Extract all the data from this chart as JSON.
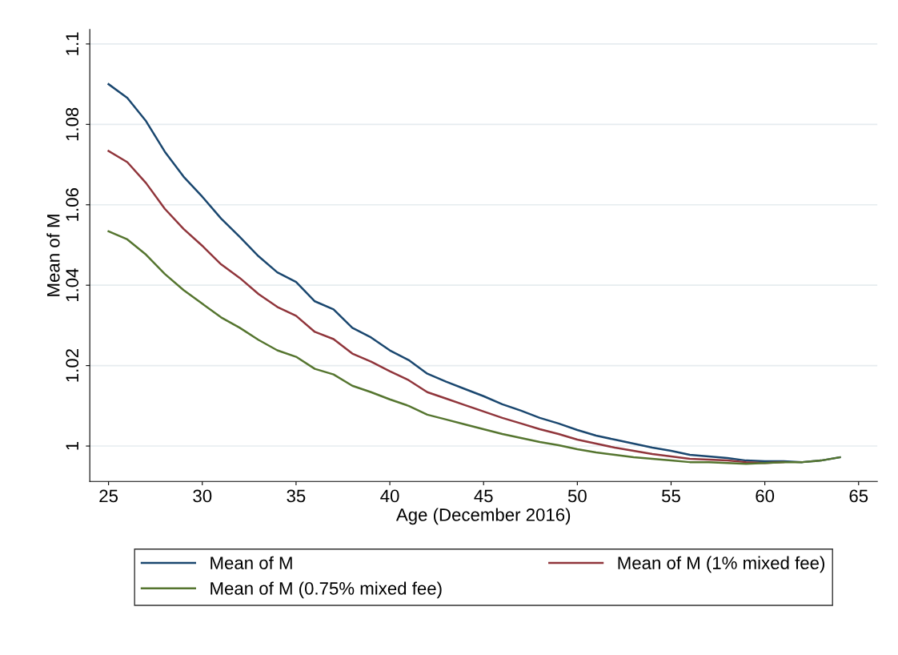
{
  "chart_data": {
    "type": "line",
    "xlabel": "Age (December 2016)",
    "ylabel": "Mean of M",
    "x": [
      25,
      26,
      27,
      28,
      29,
      30,
      31,
      32,
      33,
      34,
      35,
      36,
      37,
      38,
      39,
      40,
      41,
      42,
      43,
      44,
      45,
      46,
      47,
      48,
      49,
      50,
      51,
      52,
      53,
      54,
      55,
      56,
      57,
      58,
      59,
      60,
      61,
      62,
      63,
      64
    ],
    "series": [
      {
        "name": "Mean of M",
        "color": "#1a476f",
        "values": [
          1.09,
          1.0866,
          1.0808,
          1.0732,
          1.067,
          1.062,
          1.0566,
          1.052,
          1.0472,
          1.0432,
          1.0408,
          1.036,
          1.034,
          1.0294,
          1.027,
          1.0238,
          1.0214,
          1.018,
          1.016,
          1.0142,
          1.0124,
          1.0104,
          1.0088,
          1.007,
          1.0056,
          1.004,
          1.0026,
          1.0016,
          1.0006,
          0.9996,
          0.9988,
          0.9978,
          0.9974,
          0.997,
          0.9964,
          0.9962,
          0.9962,
          0.996,
          0.9964,
          0.9972
        ]
      },
      {
        "name": "Mean of M (1% mixed fee)",
        "color": "#90353b",
        "values": [
          1.0734,
          1.0706,
          1.0654,
          1.059,
          1.054,
          1.0498,
          1.0452,
          1.0418,
          1.0378,
          1.0346,
          1.0324,
          1.0284,
          1.0266,
          1.023,
          1.021,
          1.0186,
          1.0164,
          1.0134,
          1.0118,
          1.0102,
          1.0086,
          1.007,
          1.0056,
          1.0042,
          1.003,
          1.0016,
          1.0006,
          0.9996,
          0.9988,
          0.998,
          0.9974,
          0.9968,
          0.9966,
          0.9964,
          0.996,
          0.9958,
          0.996,
          null,
          null,
          null
        ]
      },
      {
        "name": "Mean of M (0.75% mixed fee)",
        "color": "#55752f",
        "values": [
          1.0534,
          1.0514,
          1.0476,
          1.0428,
          1.0388,
          1.0354,
          1.032,
          1.0294,
          1.0264,
          1.0238,
          1.0222,
          1.0192,
          1.0178,
          1.015,
          1.0134,
          1.0116,
          1.01,
          1.0078,
          1.0066,
          1.0054,
          1.0042,
          1.003,
          1.002,
          1.001,
          1.0002,
          0.9992,
          0.9984,
          0.9978,
          0.9972,
          0.9968,
          0.9964,
          0.996,
          0.996,
          0.9958,
          0.9956,
          0.9958,
          0.996,
          0.996,
          0.9964,
          0.9972
        ]
      }
    ],
    "xlim": [
      24,
      66
    ],
    "xticks": [
      25,
      30,
      35,
      40,
      45,
      50,
      55,
      60,
      65
    ],
    "ylim": [
      0.9912,
      1.1036
    ],
    "yticks": [
      {
        "value": 1,
        "label": "1"
      },
      1.02,
      1.04,
      1.06,
      1.08,
      {
        "value": 1.1,
        "label": "1.1"
      }
    ],
    "grid": "y",
    "legend": "bottom",
    "marker": "none",
    "line_style": "solid"
  }
}
